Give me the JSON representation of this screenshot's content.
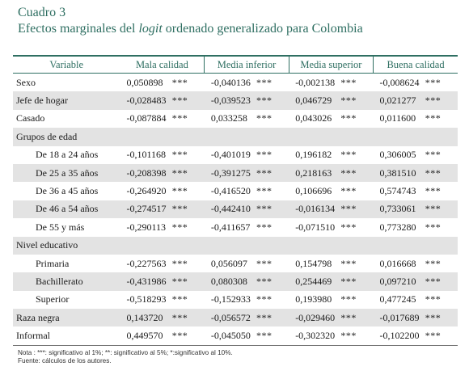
{
  "caption": "Cuadro 3",
  "title_prefix": "Efectos marginales del ",
  "title_italic": "logit",
  "title_suffix": " ordenado generalizado para Colombia",
  "columns": {
    "variable": "Variable",
    "c1": "Mala calidad",
    "c2": "Media inferior",
    "c3": "Media superior",
    "c4": "Buena calidad"
  },
  "rows": [
    {
      "label": "Sexo",
      "v": [
        "0,050898",
        "-0,040136",
        "-0,002138",
        "-0,008624"
      ],
      "s": [
        "***",
        "***",
        "***",
        "***"
      ]
    },
    {
      "label": "Jefe de hogar",
      "v": [
        "-0,028483",
        "-0,039523",
        "0,046729",
        "0,021277"
      ],
      "s": [
        "***",
        "***",
        "***",
        "***"
      ]
    },
    {
      "label": "Casado",
      "v": [
        "-0,087884",
        "0,033258",
        "0,043026",
        "0,011600"
      ],
      "s": [
        "***",
        "***",
        "***",
        "***"
      ]
    },
    {
      "label": "Grupos de edad",
      "v": [
        "",
        "",
        "",
        ""
      ],
      "s": [
        "",
        "",
        "",
        ""
      ]
    },
    {
      "label": "De 18 a 24 años",
      "v": [
        "-0,101168",
        "-0,401019",
        "0,196182",
        "0,306005"
      ],
      "s": [
        "***",
        "***",
        "***",
        "***"
      ]
    },
    {
      "label": "De 25 a 35 años",
      "v": [
        "-0,208398",
        "-0,391275",
        "0,218163",
        "0,381510"
      ],
      "s": [
        "***",
        "***",
        "***",
        "***"
      ]
    },
    {
      "label": "De 36 a 45 años",
      "v": [
        "-0,264920",
        "-0,416520",
        "0,106696",
        "0,574743"
      ],
      "s": [
        "***",
        "***",
        "***",
        "***"
      ]
    },
    {
      "label": "De 46 a 54 años",
      "v": [
        "-0,274517",
        "-0,442410",
        "-0,016134",
        "0,733061"
      ],
      "s": [
        "***",
        "***",
        "***",
        "***"
      ]
    },
    {
      "label": "De 55 y más",
      "v": [
        "-0,290113",
        "-0,411657",
        "-0,071510",
        "0,773280"
      ],
      "s": [
        "***",
        "***",
        "***",
        "***"
      ]
    },
    {
      "label": "Nivel educativo",
      "v": [
        "",
        "",
        "",
        ""
      ],
      "s": [
        "",
        "",
        "",
        ""
      ]
    },
    {
      "label": "Primaria",
      "v": [
        "-0,227563",
        "0,056097",
        "0,154798",
        "0,016668"
      ],
      "s": [
        "***",
        "***",
        "***",
        "***"
      ]
    },
    {
      "label": "Bachillerato",
      "v": [
        "-0,431986",
        "0,080308",
        "0,254469",
        "0,097210"
      ],
      "s": [
        "***",
        "***",
        "***",
        "***"
      ]
    },
    {
      "label": "Superior",
      "v": [
        "-0,518293",
        "-0,152933",
        "0,193980",
        "0,477245"
      ],
      "s": [
        "***",
        "***",
        "***",
        "***"
      ]
    },
    {
      "label": "Raza negra",
      "v": [
        "0,143720",
        "-0,056572",
        "-0,029460",
        "-0,017689"
      ],
      "s": [
        "***",
        "***",
        "***",
        "***"
      ]
    },
    {
      "label": "Informal",
      "v": [
        "0,449570",
        "-0,045050",
        "-0,302320",
        "-0,102200"
      ],
      "s": [
        "***",
        "***",
        "***",
        "***"
      ]
    }
  ],
  "note_line1": "Nota : ***: significativo al 1%; **: significativo al 5%; *:significativo al 10%.",
  "note_line2": "Fuente: cálculos de los autores."
}
